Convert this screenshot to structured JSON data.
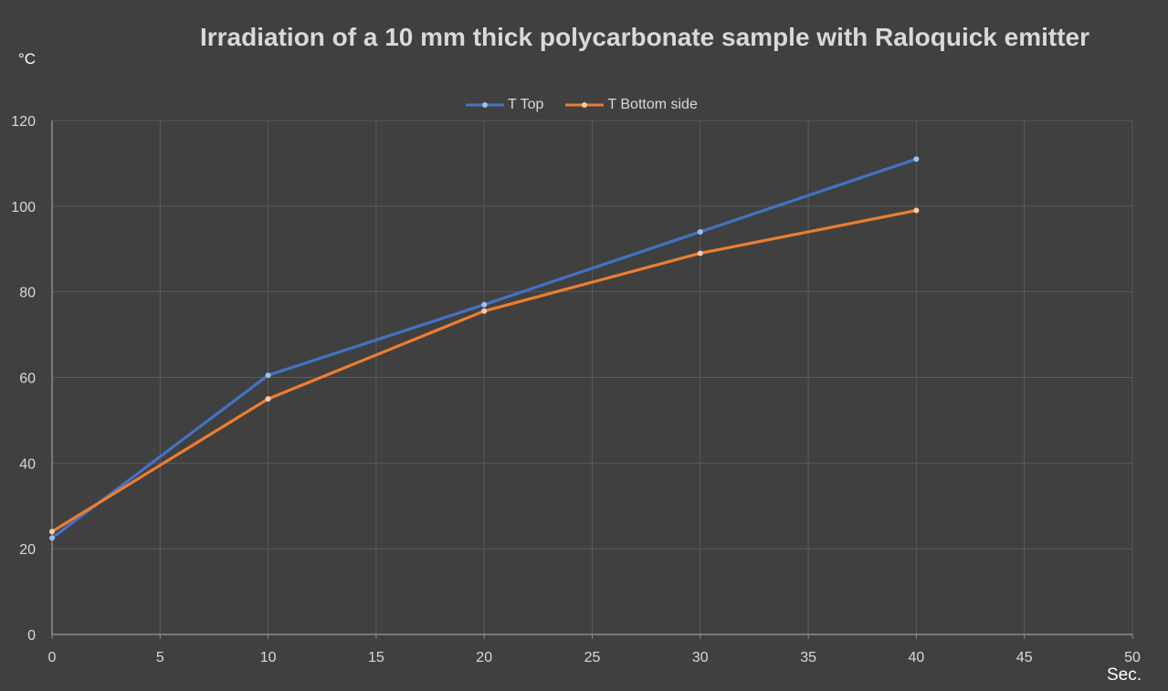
{
  "chart_data": {
    "type": "line",
    "title": "Irradiation of a 10 mm thick polycarbonate sample with Raloquick emitter",
    "ylabel": "°C",
    "xlabel": "Sec.",
    "xlim": [
      0,
      50
    ],
    "ylim": [
      0,
      120
    ],
    "xticks": [
      0,
      5,
      10,
      15,
      20,
      25,
      30,
      35,
      40,
      45,
      50
    ],
    "yticks": [
      0,
      20,
      40,
      60,
      80,
      100,
      120
    ],
    "grid": true,
    "legend_position": "top",
    "x": [
      0,
      10,
      20,
      30,
      40
    ],
    "series": [
      {
        "name": "T Top",
        "color": "#4472c4",
        "values": [
          22.5,
          60.5,
          77,
          94,
          111
        ]
      },
      {
        "name": "T Bottom side",
        "color": "#ed7d31",
        "values": [
          24,
          55,
          75.5,
          89,
          99
        ]
      }
    ]
  },
  "colors": {
    "background": "#404040",
    "grid": "#595959",
    "text": "#d9d9d9"
  }
}
